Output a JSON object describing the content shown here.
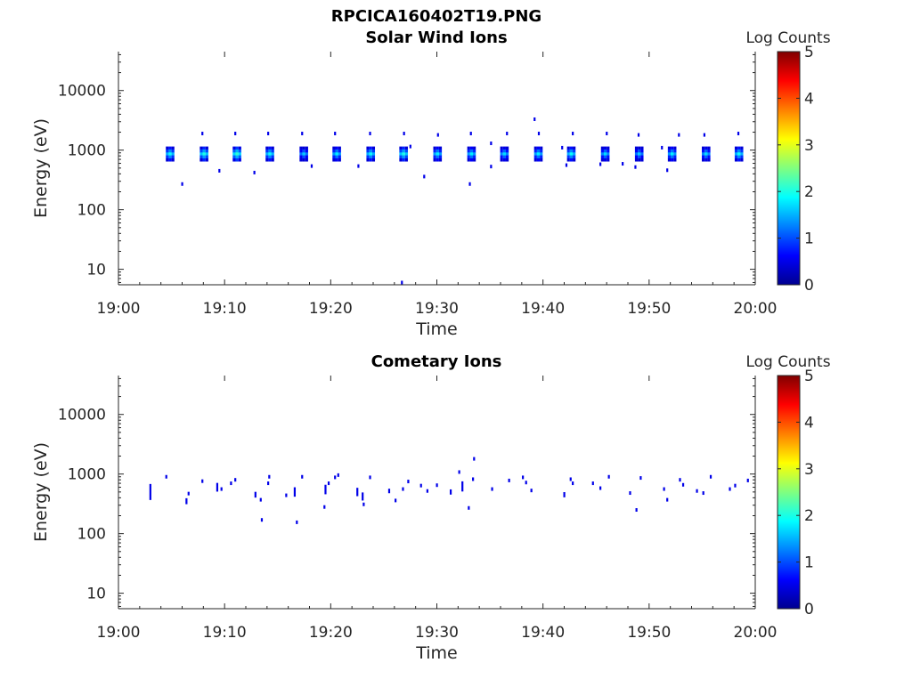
{
  "figure_title": "RPCICA160402T19.PNG",
  "chart_data": [
    {
      "type": "heatmap",
      "title": "Solar Wind Ions",
      "xlabel": "Time",
      "ylabel": "Energy (eV)",
      "x_ticks": [
        "19:00",
        "19:10",
        "19:20",
        "19:30",
        "19:40",
        "19:50",
        "20:00"
      ],
      "xlim": [
        "19:00",
        "20:00"
      ],
      "y_scale": "log",
      "y_ticks": [
        "10",
        "100",
        "1000",
        "10000"
      ],
      "ylim": [
        5.5,
        45000
      ],
      "colorbar": {
        "label": "Log Counts",
        "ticks": [
          "0",
          "1",
          "2",
          "3",
          "4",
          "5"
        ],
        "range": [
          0,
          5
        ],
        "colormap": "jet"
      },
      "grid": false,
      "pulse_times": [
        "19:04.8",
        "19:08.0",
        "19:11.1",
        "19:14.2",
        "19:17.4",
        "19:20.5",
        "19:23.7",
        "19:26.8",
        "19:30.0",
        "19:33.2",
        "19:36.3",
        "19:39.5",
        "19:42.6",
        "19:45.8",
        "19:49.0",
        "19:52.1",
        "19:55.3",
        "19:58.4"
      ],
      "pulse_energy_range_eV": [
        650,
        1150
      ],
      "pulse_peak_log_counts": [
        1.9,
        2.0,
        2.1,
        1.9,
        1.6,
        1.8,
        1.9,
        2.0,
        1.8,
        1.8,
        1.7,
        1.8,
        1.9,
        1.7,
        1.6,
        1.8,
        1.7,
        1.9
      ],
      "sparse_points": [
        {
          "t": "19:06.0",
          "e": 270
        },
        {
          "t": "19:07.9",
          "e": 1900
        },
        {
          "t": "19:09.5",
          "e": 450
        },
        {
          "t": "19:11.0",
          "e": 1900
        },
        {
          "t": "19:12.8",
          "e": 420
        },
        {
          "t": "19:14.1",
          "e": 1900
        },
        {
          "t": "19:17.3",
          "e": 1900
        },
        {
          "t": "19:18.2",
          "e": 540
        },
        {
          "t": "19:20.4",
          "e": 1900
        },
        {
          "t": "19:22.6",
          "e": 540
        },
        {
          "t": "19:23.7",
          "e": 1900
        },
        {
          "t": "19:26.9",
          "e": 1900
        },
        {
          "t": "19:27.5",
          "e": 1150
        },
        {
          "t": "19:28.8",
          "e": 360
        },
        {
          "t": "19:30.1",
          "e": 1800
        },
        {
          "t": "19:33.2",
          "e": 1900
        },
        {
          "t": "19:33.1",
          "e": 270
        },
        {
          "t": "19:35.1",
          "e": 530
        },
        {
          "t": "19:35.1",
          "e": 1300
        },
        {
          "t": "19:36.6",
          "e": 1900
        },
        {
          "t": "19:39.2",
          "e": 3300
        },
        {
          "t": "19:39.6",
          "e": 1900
        },
        {
          "t": "19:41.8",
          "e": 1100
        },
        {
          "t": "19:42.2",
          "e": 560
        },
        {
          "t": "19:42.8",
          "e": 1900
        },
        {
          "t": "19:45.4",
          "e": 580
        },
        {
          "t": "19:46.0",
          "e": 1900
        },
        {
          "t": "19:47.5",
          "e": 590
        },
        {
          "t": "19:48.7",
          "e": 520
        },
        {
          "t": "19:49.0",
          "e": 1800
        },
        {
          "t": "19:51.2",
          "e": 1100
        },
        {
          "t": "19:51.7",
          "e": 460
        },
        {
          "t": "19:52.8",
          "e": 1800
        },
        {
          "t": "19:55.2",
          "e": 1800
        },
        {
          "t": "19:58.4",
          "e": 1900
        },
        {
          "t": "19:26.7",
          "e": 6
        }
      ]
    },
    {
      "type": "heatmap",
      "title": "Cometary Ions",
      "xlabel": "Time",
      "ylabel": "Energy (eV)",
      "x_ticks": [
        "19:00",
        "19:10",
        "19:20",
        "19:30",
        "19:40",
        "19:50",
        "20:00"
      ],
      "xlim": [
        "19:00",
        "20:00"
      ],
      "y_scale": "log",
      "y_ticks": [
        "10",
        "100",
        "1000",
        "10000"
      ],
      "ylim": [
        5.5,
        45000
      ],
      "colorbar": {
        "label": "Log Counts",
        "ticks": [
          "0",
          "1",
          "2",
          "3",
          "4",
          "5"
        ],
        "range": [
          0,
          5
        ],
        "colormap": "jet"
      },
      "grid": false,
      "points": [
        {
          "t": "19:03.0",
          "e": 500,
          "h": 300
        },
        {
          "t": "19:04.5",
          "e": 900
        },
        {
          "t": "19:06.4",
          "e": 350,
          "h": 80
        },
        {
          "t": "19:06.6",
          "e": 470
        },
        {
          "t": "19:07.9",
          "e": 760
        },
        {
          "t": "19:09.3",
          "e": 600,
          "h": 200
        },
        {
          "t": "19:09.7",
          "e": 560
        },
        {
          "t": "19:11.0",
          "e": 800
        },
        {
          "t": "19:10.6",
          "e": 700
        },
        {
          "t": "19:12.9",
          "e": 450,
          "h": 100
        },
        {
          "t": "19:13.4",
          "e": 370
        },
        {
          "t": "19:13.5",
          "e": 170
        },
        {
          "t": "19:14.2",
          "e": 900
        },
        {
          "t": "19:14.1",
          "e": 700
        },
        {
          "t": "19:15.8",
          "e": 440
        },
        {
          "t": "19:16.6",
          "e": 500,
          "h": 180
        },
        {
          "t": "19:16.8",
          "e": 155
        },
        {
          "t": "19:17.3",
          "e": 900
        },
        {
          "t": "19:19.5",
          "e": 550,
          "h": 200
        },
        {
          "t": "19:19.8",
          "e": 700
        },
        {
          "t": "19:19.4",
          "e": 280
        },
        {
          "t": "19:20.4",
          "e": 880
        },
        {
          "t": "19:20.7",
          "e": 960
        },
        {
          "t": "19:22.5",
          "e": 500,
          "h": 160
        },
        {
          "t": "19:23.0",
          "e": 420,
          "h": 130
        },
        {
          "t": "19:23.1",
          "e": 310
        },
        {
          "t": "19:23.7",
          "e": 880
        },
        {
          "t": "19:25.5",
          "e": 520,
          "h": 90
        },
        {
          "t": "19:26.1",
          "e": 360
        },
        {
          "t": "19:26.8",
          "e": 560
        },
        {
          "t": "19:27.3",
          "e": 750
        },
        {
          "t": "19:28.5",
          "e": 640
        },
        {
          "t": "19:29.1",
          "e": 520
        },
        {
          "t": "19:30.0",
          "e": 650
        },
        {
          "t": "19:31.3",
          "e": 500,
          "h": 100
        },
        {
          "t": "19:32.1",
          "e": 1080
        },
        {
          "t": "19:32.4",
          "e": 620,
          "h": 240
        },
        {
          "t": "19:33.0",
          "e": 270
        },
        {
          "t": "19:33.4",
          "e": 820
        },
        {
          "t": "19:33.5",
          "e": 1800
        },
        {
          "t": "19:35.2",
          "e": 560
        },
        {
          "t": "19:36.8",
          "e": 780
        },
        {
          "t": "19:38.1",
          "e": 880
        },
        {
          "t": "19:38.4",
          "e": 720
        },
        {
          "t": "19:38.9",
          "e": 530
        },
        {
          "t": "19:42.0",
          "e": 450,
          "h": 90
        },
        {
          "t": "19:42.6",
          "e": 820
        },
        {
          "t": "19:42.8",
          "e": 700
        },
        {
          "t": "19:44.7",
          "e": 700
        },
        {
          "t": "19:45.4",
          "e": 580
        },
        {
          "t": "19:46.2",
          "e": 900
        },
        {
          "t": "19:48.2",
          "e": 480
        },
        {
          "t": "19:48.8",
          "e": 250
        },
        {
          "t": "19:49.2",
          "e": 860
        },
        {
          "t": "19:51.4",
          "e": 560
        },
        {
          "t": "19:51.7",
          "e": 370
        },
        {
          "t": "19:52.9",
          "e": 800
        },
        {
          "t": "19:53.2",
          "e": 660
        },
        {
          "t": "19:54.5",
          "e": 520
        },
        {
          "t": "19:55.1",
          "e": 480
        },
        {
          "t": "19:55.8",
          "e": 900
        },
        {
          "t": "19:57.6",
          "e": 560
        },
        {
          "t": "19:58.1",
          "e": 640
        },
        {
          "t": "19:59.3",
          "e": 780
        }
      ]
    }
  ]
}
